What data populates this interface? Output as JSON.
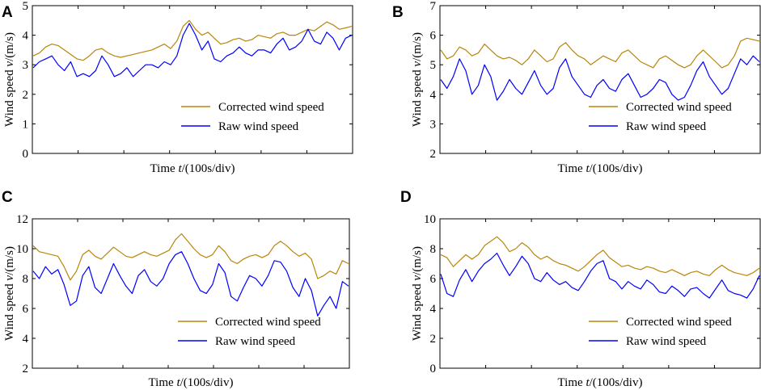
{
  "colors": {
    "corrected": "#b8860b",
    "raw": "#0000ff",
    "axis": "#000000"
  },
  "chart_data": [
    {
      "panel": "A",
      "type": "line",
      "xlabel_prefix": "Time ",
      "xlabel_var": "t",
      "xlabel_suffix": "/(100s/div)",
      "ylabel_prefix": "Wind speed ",
      "ylabel_var": "v",
      "ylabel_suffix": "/(m/s)",
      "ylim": [
        0,
        5
      ],
      "yticks": [
        0,
        1,
        2,
        3,
        4,
        5
      ],
      "x_divisions": 7,
      "legend_position": "bottom-right",
      "series": [
        {
          "name": "Corrected wind speed",
          "key": "corrected",
          "values": [
            3.3,
            3.4,
            3.6,
            3.7,
            3.65,
            3.5,
            3.35,
            3.2,
            3.15,
            3.3,
            3.5,
            3.55,
            3.4,
            3.3,
            3.25,
            3.3,
            3.35,
            3.4,
            3.45,
            3.5,
            3.6,
            3.7,
            3.55,
            3.8,
            4.3,
            4.5,
            4.2,
            4.0,
            4.1,
            3.9,
            3.7,
            3.75,
            3.85,
            3.9,
            3.8,
            3.85,
            4.0,
            3.95,
            3.9,
            4.05,
            4.1,
            4.0,
            4.0,
            4.1,
            4.2,
            4.15,
            4.3,
            4.45,
            4.35,
            4.2,
            4.25,
            4.3
          ]
        },
        {
          "name": "Raw wind speed",
          "key": "raw",
          "values": [
            2.9,
            3.1,
            3.2,
            3.3,
            3.0,
            2.8,
            3.1,
            2.6,
            2.7,
            2.6,
            2.8,
            3.3,
            3.0,
            2.6,
            2.7,
            2.9,
            2.6,
            2.8,
            3.0,
            3.0,
            2.9,
            3.1,
            3.0,
            3.3,
            4.0,
            4.4,
            4.0,
            3.5,
            3.8,
            3.2,
            3.1,
            3.3,
            3.4,
            3.6,
            3.4,
            3.3,
            3.5,
            3.5,
            3.4,
            3.7,
            3.9,
            3.5,
            3.6,
            3.8,
            4.2,
            3.8,
            3.7,
            4.1,
            3.9,
            3.5,
            3.9,
            4.0
          ]
        }
      ]
    },
    {
      "panel": "B",
      "type": "line",
      "xlabel_prefix": "Time ",
      "xlabel_var": "t",
      "xlabel_suffix": "/(100s/div)",
      "ylabel_prefix": "Wind speed ",
      "ylabel_var": "v",
      "ylabel_suffix": "/(m/s)",
      "ylim": [
        2,
        7
      ],
      "yticks": [
        2,
        3,
        4,
        5,
        6,
        7
      ],
      "x_divisions": 7,
      "legend_position": "bottom-right",
      "series": [
        {
          "name": "Corrected wind speed",
          "key": "corrected",
          "values": [
            5.5,
            5.2,
            5.3,
            5.6,
            5.5,
            5.3,
            5.4,
            5.7,
            5.5,
            5.3,
            5.2,
            5.25,
            5.15,
            5.0,
            5.2,
            5.5,
            5.3,
            5.1,
            5.2,
            5.6,
            5.75,
            5.5,
            5.3,
            5.2,
            5.0,
            5.15,
            5.3,
            5.2,
            5.1,
            5.4,
            5.5,
            5.3,
            5.1,
            5.0,
            4.9,
            5.2,
            5.3,
            5.15,
            5.0,
            4.9,
            5.0,
            5.3,
            5.5,
            5.3,
            5.1,
            4.9,
            5.0,
            5.3,
            5.8,
            5.9,
            5.85,
            5.8
          ]
        },
        {
          "name": "Raw wind speed",
          "key": "raw",
          "values": [
            4.5,
            4.2,
            4.6,
            5.2,
            4.8,
            4.0,
            4.3,
            5.0,
            4.6,
            3.8,
            4.1,
            4.5,
            4.2,
            4.0,
            4.4,
            4.8,
            4.3,
            4.0,
            4.2,
            4.9,
            5.2,
            4.6,
            4.3,
            4.0,
            3.9,
            4.3,
            4.5,
            4.2,
            4.1,
            4.5,
            4.7,
            4.3,
            3.9,
            4.0,
            4.2,
            4.5,
            4.4,
            4.0,
            3.8,
            3.9,
            4.3,
            4.8,
            5.1,
            4.6,
            4.3,
            4.0,
            4.2,
            4.7,
            5.2,
            5.0,
            5.3,
            5.1
          ]
        }
      ]
    },
    {
      "panel": "C",
      "type": "line",
      "xlabel_prefix": "Time ",
      "xlabel_var": "t",
      "xlabel_suffix": "/(100s/div)",
      "ylabel_prefix": "Wind speed ",
      "ylabel_var": "v",
      "ylabel_suffix": "/(m/s)",
      "ylim": [
        2,
        12
      ],
      "yticks": [
        2,
        4,
        6,
        8,
        10,
        12
      ],
      "x_divisions": 7,
      "legend_position": "bottom-right",
      "series": [
        {
          "name": "Corrected wind speed",
          "key": "corrected",
          "values": [
            10.2,
            9.8,
            9.7,
            9.6,
            9.5,
            8.8,
            7.9,
            8.5,
            9.6,
            9.9,
            9.5,
            9.3,
            9.7,
            10.1,
            9.8,
            9.5,
            9.4,
            9.6,
            9.8,
            9.6,
            9.5,
            9.7,
            9.9,
            10.6,
            11.0,
            10.5,
            10.0,
            9.6,
            9.4,
            9.6,
            10.2,
            9.8,
            9.2,
            9.0,
            9.3,
            9.5,
            9.6,
            9.4,
            9.6,
            10.2,
            10.5,
            10.2,
            9.8,
            9.5,
            9.7,
            9.3,
            8.0,
            8.2,
            8.5,
            8.3,
            9.2,
            9.0
          ]
        },
        {
          "name": "Raw wind speed",
          "key": "raw",
          "values": [
            8.5,
            8.0,
            8.8,
            8.3,
            8.6,
            7.6,
            6.2,
            6.5,
            8.2,
            8.8,
            7.4,
            7.0,
            8.0,
            9.0,
            8.2,
            7.5,
            7.0,
            8.2,
            8.6,
            7.8,
            7.5,
            8.0,
            9.0,
            9.6,
            9.8,
            9.0,
            8.0,
            7.2,
            7.0,
            7.6,
            9.0,
            8.4,
            6.8,
            6.5,
            7.4,
            8.2,
            8.0,
            7.5,
            8.2,
            9.2,
            9.1,
            8.5,
            7.4,
            6.8,
            8.0,
            7.2,
            5.5,
            6.2,
            6.8,
            6.0,
            7.8,
            7.5
          ]
        }
      ]
    },
    {
      "panel": "D",
      "type": "line",
      "xlabel_prefix": "Time ",
      "xlabel_var": "t",
      "xlabel_suffix": "/(100s/div)",
      "ylabel_prefix": "Wind speed ",
      "ylabel_var": "v",
      "ylabel_suffix": "/(m/s)",
      "ylim": [
        0,
        10
      ],
      "yticks": [
        0,
        2,
        4,
        6,
        8,
        10
      ],
      "x_divisions": 7,
      "legend_position": "bottom-right",
      "series": [
        {
          "name": "Corrected wind speed",
          "key": "corrected",
          "values": [
            7.6,
            7.4,
            6.8,
            7.2,
            7.6,
            7.3,
            7.6,
            8.2,
            8.5,
            8.8,
            8.4,
            7.8,
            8.0,
            8.4,
            8.1,
            7.6,
            7.3,
            7.5,
            7.2,
            7.0,
            6.9,
            6.7,
            6.5,
            6.8,
            7.2,
            7.6,
            7.9,
            7.4,
            7.1,
            6.8,
            6.9,
            6.7,
            6.6,
            6.8,
            6.7,
            6.5,
            6.4,
            6.6,
            6.4,
            6.2,
            6.4,
            6.5,
            6.3,
            6.2,
            6.6,
            6.9,
            6.6,
            6.4,
            6.3,
            6.2,
            6.4,
            6.7
          ]
        },
        {
          "name": "Raw wind speed",
          "key": "raw",
          "values": [
            6.3,
            5.0,
            4.8,
            5.9,
            6.6,
            5.8,
            6.5,
            7.0,
            7.3,
            7.7,
            6.9,
            6.2,
            6.8,
            7.5,
            7.0,
            6.0,
            5.8,
            6.4,
            5.9,
            5.6,
            5.8,
            5.4,
            5.2,
            5.8,
            6.5,
            7.0,
            7.2,
            6.0,
            5.8,
            5.3,
            5.8,
            5.5,
            5.3,
            5.9,
            5.6,
            5.1,
            5.0,
            5.5,
            5.2,
            4.8,
            5.3,
            5.4,
            5.0,
            4.7,
            5.3,
            5.9,
            5.2,
            5.0,
            4.9,
            4.7,
            5.3,
            6.2
          ]
        }
      ]
    }
  ]
}
